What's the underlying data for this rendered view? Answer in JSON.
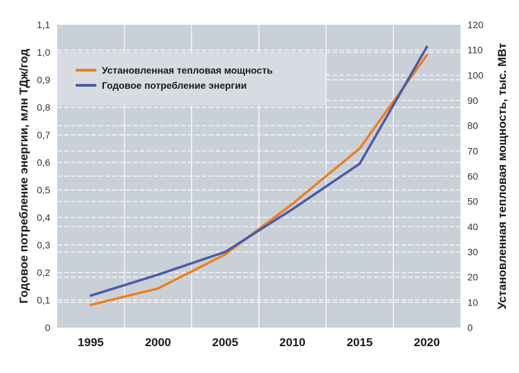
{
  "chart_data": {
    "type": "line",
    "x": [
      1995,
      2000,
      2005,
      2010,
      2015,
      2020
    ],
    "x_tick_labels": [
      "1995",
      "2000",
      "2005",
      "2010",
      "2015",
      "2020"
    ],
    "y_left": {
      "label": "Годовое потребление энергии, млн ТДж/год",
      "ylim": [
        0,
        1.1
      ],
      "ticks": [
        "0",
        "0,1",
        "0,2",
        "0,3",
        "0,4",
        "0,5",
        "0,6",
        "0,7",
        "0,8",
        "0,9",
        "1,0",
        "1,1"
      ]
    },
    "y_right": {
      "label": "Установленная тепловая мощность, тыс. МВт",
      "ylim": [
        0,
        120
      ],
      "ticks": [
        "0",
        "10",
        "20",
        "30",
        "40",
        "50",
        "60",
        "70",
        "80",
        "90",
        "100",
        "110",
        "120"
      ]
    },
    "series": [
      {
        "name": "Установленная тепловая мощность",
        "axis": "right",
        "color": "#ee7f1a",
        "values": [
          9,
          15.5,
          29,
          49,
          71,
          108
        ]
      },
      {
        "name": "Годовое потребление энергии",
        "axis": "left",
        "color": "#4a5ba6",
        "values": [
          0.116,
          0.192,
          0.275,
          0.43,
          0.595,
          1.02
        ]
      }
    ],
    "legend_position": "top-left",
    "grid": true,
    "colors": {
      "plot_background": "#c9d0d8",
      "grid": "#ffffff"
    }
  }
}
